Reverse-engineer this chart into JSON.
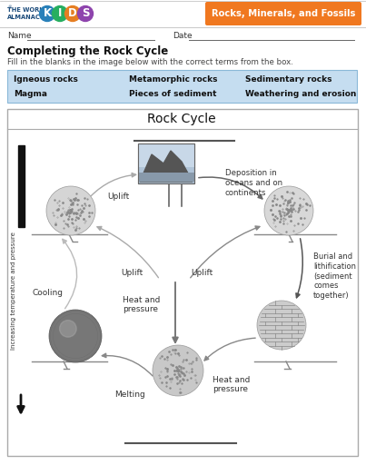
{
  "subject_badge": "Rocks, Minerals, and Fossils",
  "worksheet_title": "Completing the Rock Cycle",
  "instruction": "Fill in the blanks in the image below with the correct terms from the box.",
  "terms": [
    [
      "Igneous rocks",
      "Metamorphic rocks",
      "Sedimentary rocks"
    ],
    [
      "Magma",
      "Pieces of sediment",
      "Weathering and erosion"
    ]
  ],
  "diagram_title": "Rock Cycle",
  "side_label": "Increasing temperature and pressure",
  "bg_color": "#ffffff",
  "terms_bg": "#c5ddf0",
  "badge_bg": "#f07820",
  "kids_colors": [
    "#2980b9",
    "#27ae60",
    "#e67e22",
    "#8e44ad"
  ],
  "kids_letters": [
    "K",
    "I",
    "D",
    "S"
  ]
}
